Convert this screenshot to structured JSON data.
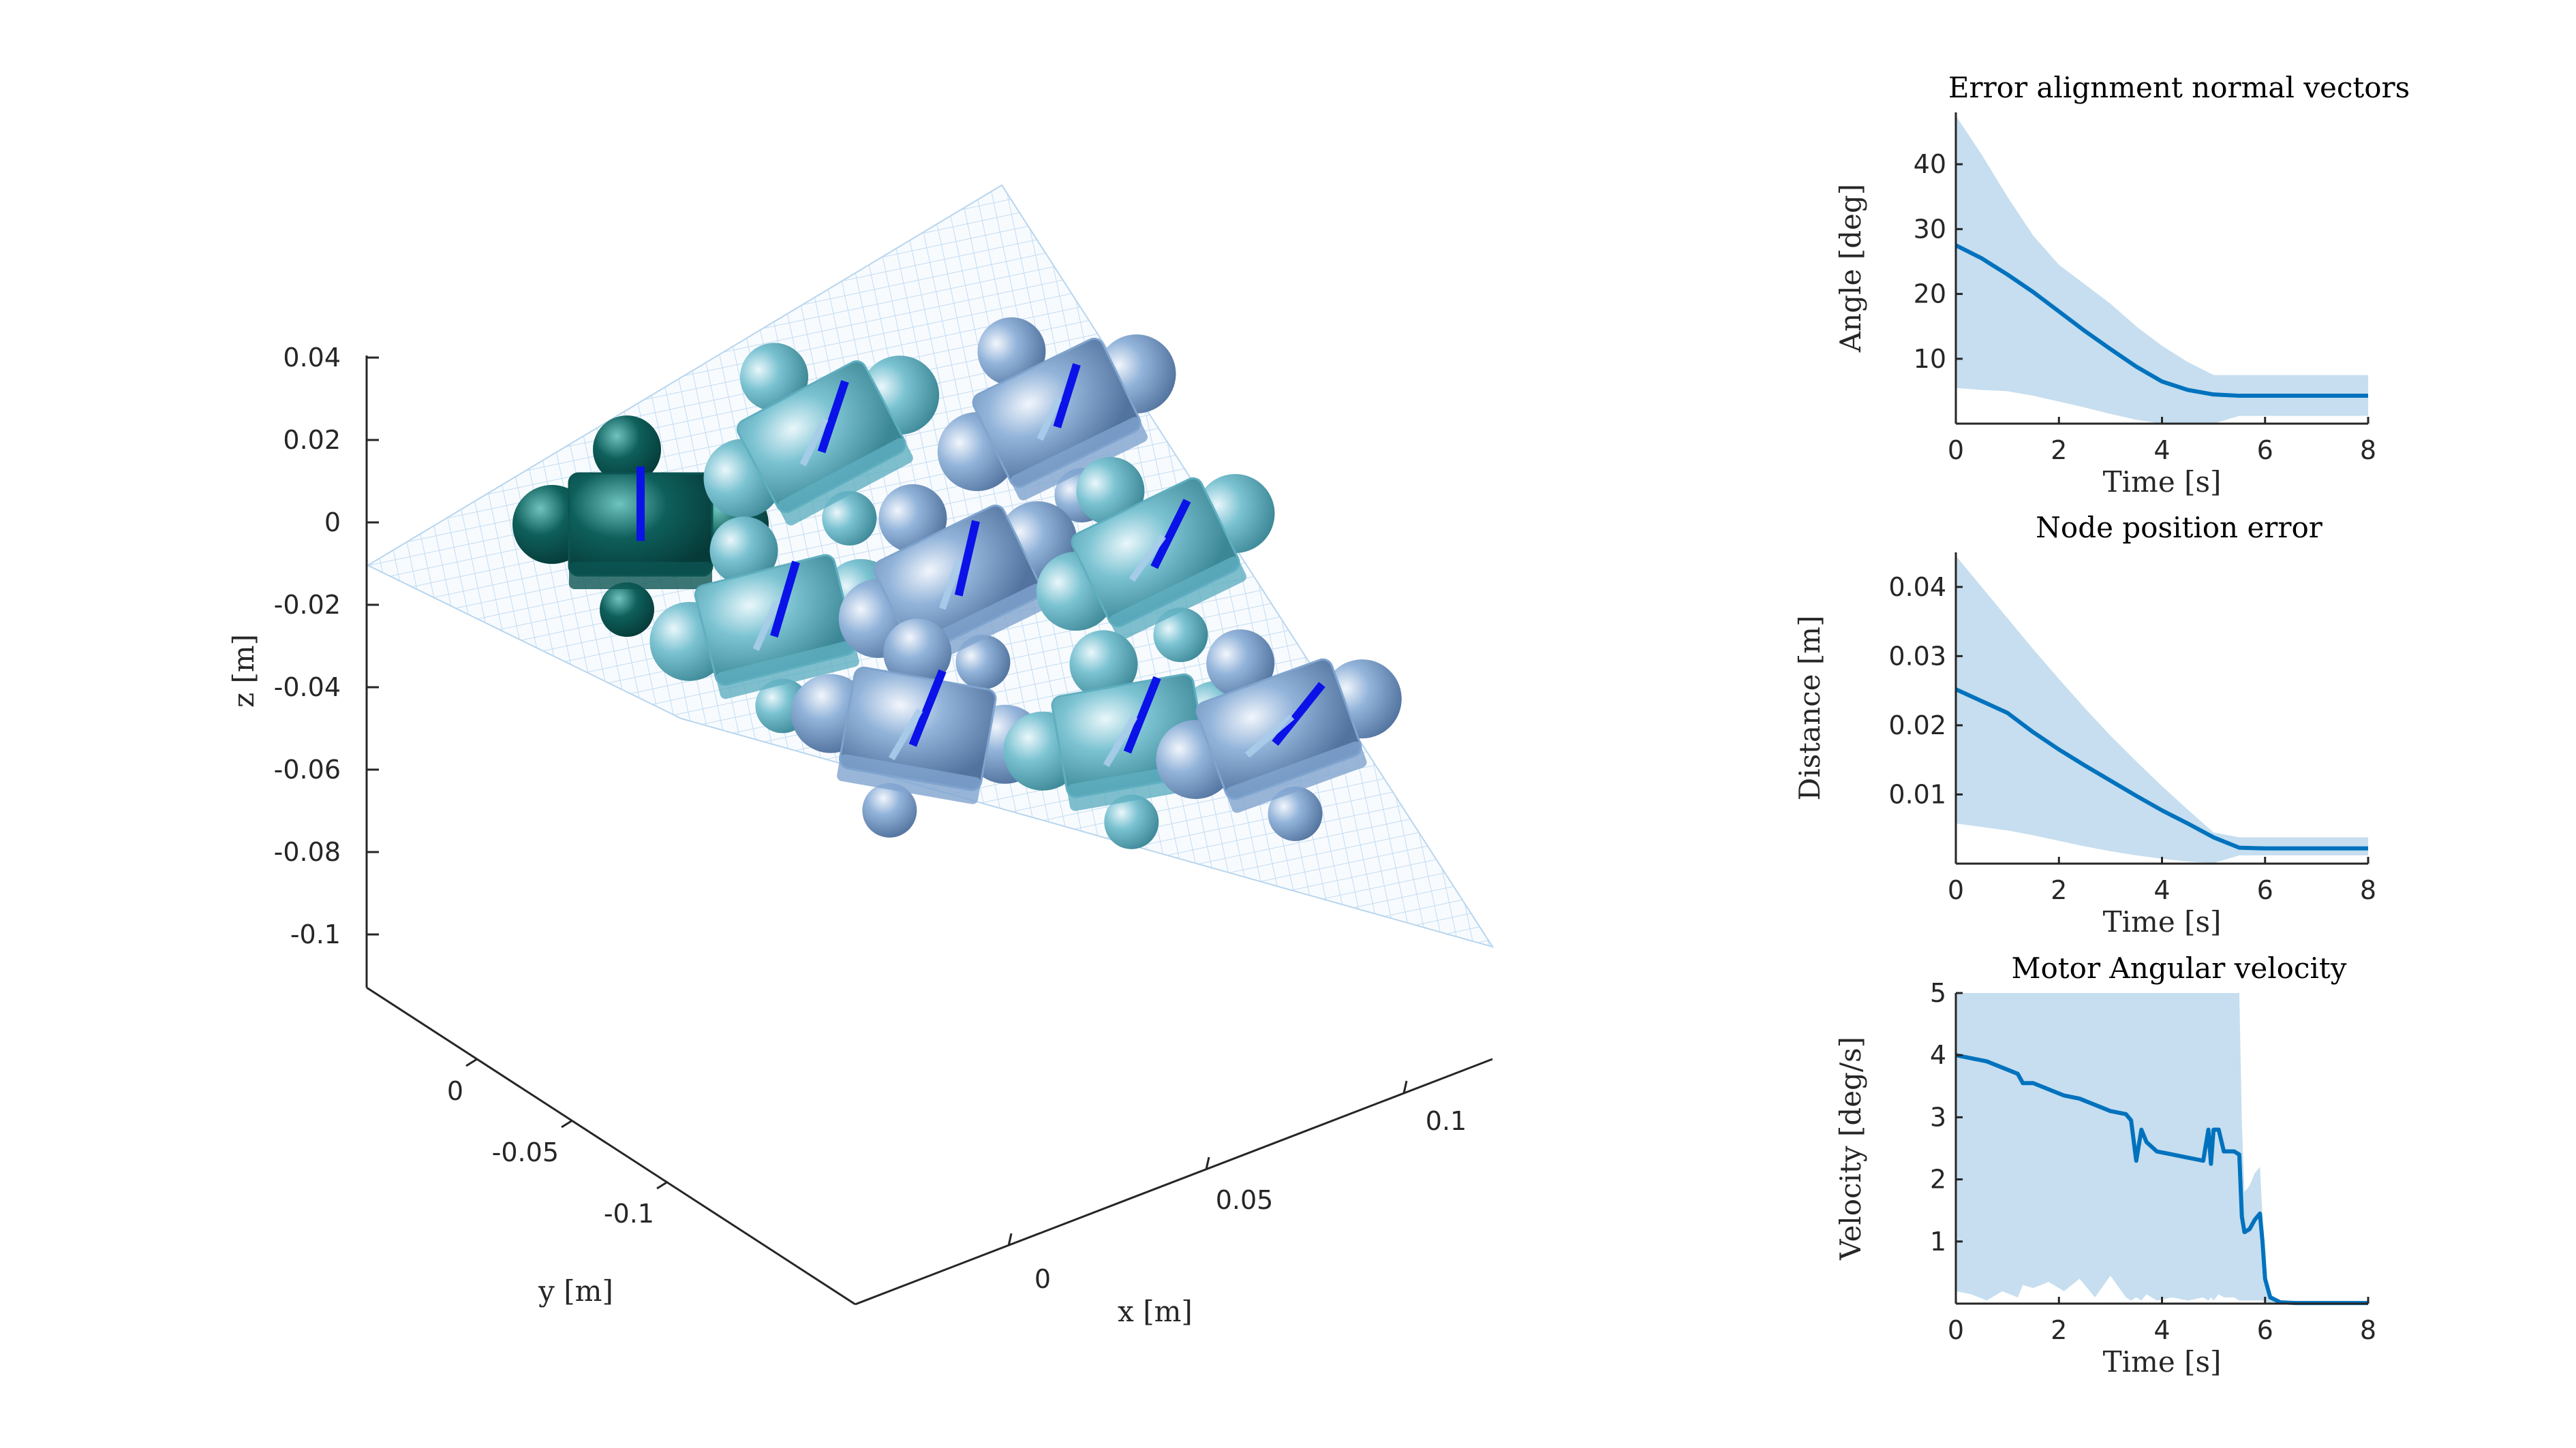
{
  "colors": {
    "line": "#0072BD",
    "band": "#C6DEEF",
    "axis": "#262626",
    "grid_plane": "#A9CDEB",
    "robot_dark": "#0B5552",
    "robot_teal": "#5FAFC0",
    "robot_blue": "#7FA4CE",
    "normal_vector": "#0A12E8"
  },
  "scene3d": {
    "xlabel": "x [m]",
    "ylabel": "y [m]",
    "zlabel": "z [m]",
    "z_ticks": [
      "0.04",
      "0.02",
      "0",
      "-0.02",
      "-0.04",
      "-0.06",
      "-0.08",
      "-0.1"
    ],
    "y_ticks": [
      "0",
      "-0.05",
      "-0.1"
    ],
    "x_ticks": [
      "0",
      "0.05",
      "0.1"
    ],
    "module_count": 9
  },
  "chart_data": [
    {
      "type": "line",
      "title": "Error alignment normal vectors",
      "xlabel": "Time [s]",
      "ylabel": "Angle [deg]",
      "xlim": [
        0,
        8
      ],
      "ylim": [
        0,
        48
      ],
      "xticks": [
        "0",
        "2",
        "4",
        "6",
        "8"
      ],
      "yticks": [
        "10",
        "20",
        "30",
        "40"
      ],
      "x": [
        0,
        0.5,
        1,
        1.5,
        2,
        2.5,
        3,
        3.5,
        4,
        4.5,
        5,
        5.5,
        6,
        6.5,
        7,
        7.5,
        8
      ],
      "series": [
        {
          "values": [
            27.5,
            25.5,
            23.0,
            20.3,
            17.3,
            14.3,
            11.5,
            8.8,
            6.5,
            5.2,
            4.5,
            4.3,
            4.3,
            4.3,
            4.3,
            4.3,
            4.3
          ]
        }
      ],
      "band_upper": [
        47.5,
        41.5,
        35.0,
        29.0,
        24.5,
        21.5,
        18.5,
        15.0,
        12.0,
        9.5,
        7.5,
        7.5,
        7.5,
        7.5,
        7.5,
        7.5,
        7.5
      ],
      "band_lower": [
        5.5,
        5.2,
        5.0,
        4.3,
        3.4,
        2.5,
        1.5,
        0.6,
        0,
        0,
        0,
        1.2,
        1.2,
        1.2,
        1.2,
        1.2,
        1.2
      ]
    },
    {
      "type": "line",
      "title": "Node position error",
      "xlabel": "Time [s]",
      "ylabel": "Distance [m]",
      "xlim": [
        0,
        8
      ],
      "ylim": [
        0,
        0.045
      ],
      "xticks": [
        "0",
        "2",
        "4",
        "6",
        "8"
      ],
      "yticks": [
        "0.01",
        "0.02",
        "0.03",
        "0.04"
      ],
      "x": [
        0,
        0.5,
        1,
        1.5,
        2,
        2.5,
        3,
        3.5,
        4,
        4.5,
        5,
        5.5,
        6,
        6.5,
        7,
        7.5,
        8
      ],
      "series": [
        {
          "values": [
            0.0252,
            0.0235,
            0.0218,
            0.019,
            0.0165,
            0.0142,
            0.012,
            0.0098,
            0.0077,
            0.0058,
            0.0038,
            0.0023,
            0.0022,
            0.0022,
            0.0022,
            0.0022,
            0.0022
          ]
        }
      ],
      "band_upper": [
        0.0445,
        0.04,
        0.0355,
        0.031,
        0.0267,
        0.0225,
        0.0185,
        0.0148,
        0.0112,
        0.0078,
        0.0045,
        0.0038,
        0.0038,
        0.0038,
        0.0038,
        0.0038,
        0.0038
      ],
      "band_lower": [
        0.0058,
        0.0053,
        0.0048,
        0.0041,
        0.0033,
        0.0025,
        0.0018,
        0.0012,
        0.0007,
        0.0003,
        0.0001,
        0.0012,
        0.0012,
        0.0012,
        0.0012,
        0.0012,
        0.0012
      ]
    },
    {
      "type": "line",
      "title": "Motor Angular velocity",
      "xlabel": "Time [s]",
      "ylabel": "Velocity [deg/s]",
      "xlim": [
        0,
        8
      ],
      "ylim": [
        0,
        5
      ],
      "xticks": [
        "0",
        "2",
        "4",
        "6",
        "8"
      ],
      "yticks": [
        "1",
        "2",
        "3",
        "4",
        "5"
      ],
      "x": [
        0,
        0.3,
        0.6,
        0.9,
        1.2,
        1.3,
        1.5,
        1.8,
        2.1,
        2.4,
        2.7,
        3.0,
        3.3,
        3.4,
        3.5,
        3.6,
        3.7,
        3.9,
        4.2,
        4.5,
        4.8,
        4.9,
        4.95,
        5.0,
        5.1,
        5.2,
        5.4,
        5.5,
        5.55,
        5.6,
        5.7,
        5.8,
        5.9,
        5.95,
        6.0,
        6.1,
        6.3,
        6.6,
        7.0,
        7.5,
        8.0
      ],
      "series": [
        {
          "values": [
            4.0,
            3.95,
            3.9,
            3.8,
            3.7,
            3.55,
            3.55,
            3.45,
            3.35,
            3.3,
            3.2,
            3.1,
            3.05,
            2.95,
            2.3,
            2.8,
            2.6,
            2.45,
            2.4,
            2.35,
            2.3,
            2.8,
            2.25,
            2.8,
            2.8,
            2.45,
            2.45,
            2.4,
            1.4,
            1.15,
            1.2,
            1.35,
            1.45,
            1.0,
            0.4,
            0.1,
            0.02,
            0.01,
            0.01,
            0.01,
            0.01
          ]
        }
      ],
      "band_upper": [
        5,
        5,
        5,
        5,
        5,
        5,
        5,
        5,
        5,
        5,
        5,
        5,
        5,
        5,
        5,
        5,
        5,
        5,
        5,
        5,
        5,
        5,
        5,
        5,
        5,
        5,
        5,
        5,
        2.9,
        1.8,
        1.9,
        2.1,
        2.2,
        1.4,
        0.5,
        0.15,
        0.05,
        0.03,
        0.02,
        0.02,
        0.02
      ],
      "band_lower": [
        0.2,
        0.15,
        0.05,
        0.2,
        0.1,
        0.3,
        0.25,
        0.35,
        0.2,
        0.4,
        0.1,
        0.45,
        0.1,
        0.05,
        0.1,
        0.05,
        0.15,
        0.05,
        0.1,
        0.05,
        0.1,
        0.05,
        0.1,
        0.05,
        0.15,
        0.1,
        0.1,
        0.05,
        0.05,
        0.05,
        0.05,
        0.05,
        0.05,
        0.05,
        0.02,
        0.01,
        0.01,
        0.01,
        0.01,
        0.01,
        0.01
      ]
    }
  ]
}
